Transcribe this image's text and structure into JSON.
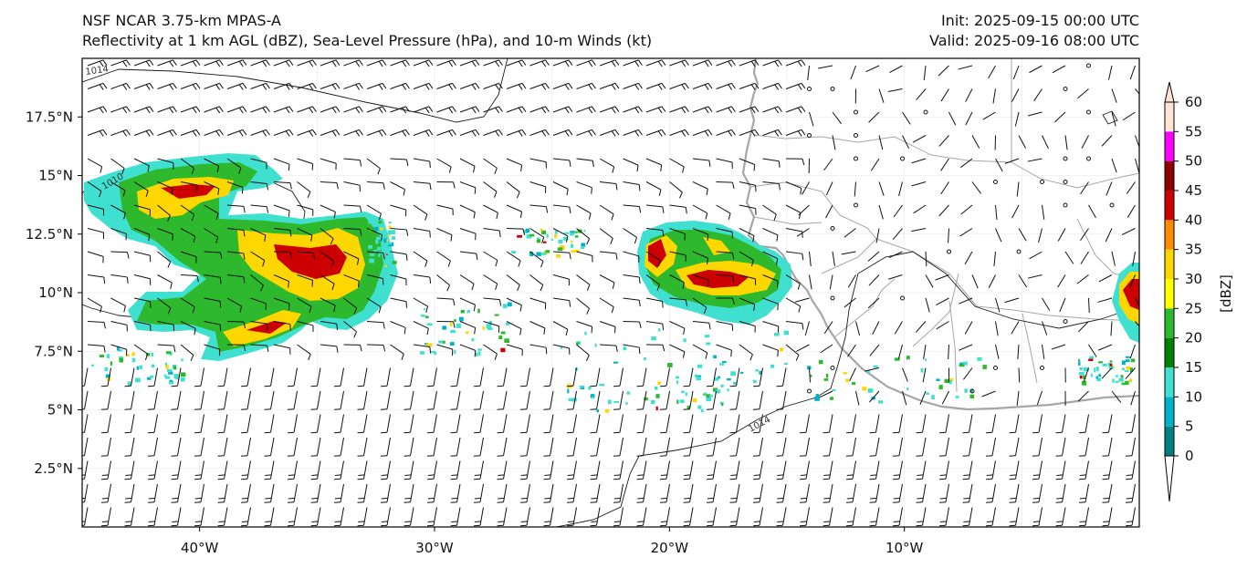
{
  "header": {
    "title_line1": "NSF NCAR 3.75-km MPAS-A",
    "title_line2": "Reflectivity at 1 km AGL (dBZ), Sea-Level Pressure (hPa), and 10-m Winds (kt)",
    "init": "Init: 2025-09-15 00:00 UTC",
    "valid": "Valid: 2025-09-16 08:00 UTC"
  },
  "map": {
    "lon_range": [
      -45,
      0
    ],
    "lat_range": [
      0,
      20
    ],
    "lat_ticks": [
      "17.5°N",
      "15°N",
      "12.5°N",
      "10°N",
      "7.5°N",
      "5°N",
      "2.5°N"
    ],
    "lon_ticks": [
      "40°W",
      "30°W",
      "20°W",
      "10°W"
    ],
    "isobar_label": "1014",
    "isobar_label_2": "1010",
    "isobar_label_3": "1014"
  },
  "colorbar": {
    "label": "[dBZ]",
    "ticks": [
      "0",
      "5",
      "10",
      "15",
      "20",
      "25",
      "30",
      "35",
      "40",
      "45",
      "50",
      "55",
      "60"
    ],
    "colors": [
      "#008080",
      "#00b2c8",
      "#40e0d0",
      "#008000",
      "#2eb82e",
      "#ffff00",
      "#ffd700",
      "#ff8c00",
      "#cc0000",
      "#8b0000",
      "#ff00ff",
      "#ffe4d6"
    ]
  }
}
